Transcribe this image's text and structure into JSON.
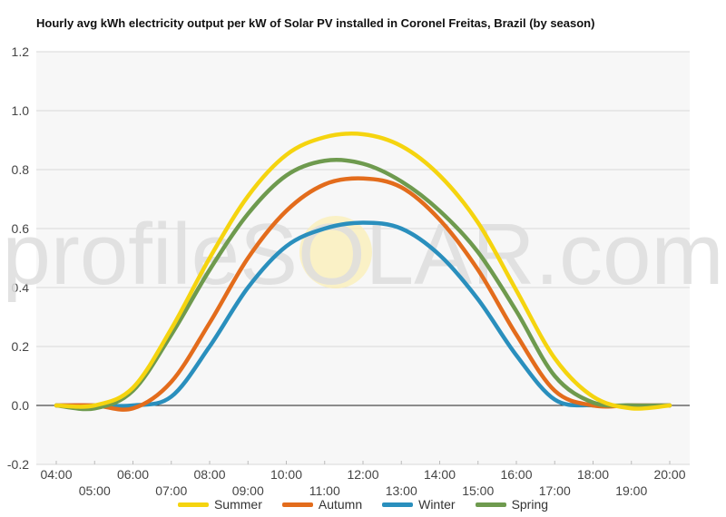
{
  "chart_data": {
    "type": "line",
    "title": "Hourly avg kWh electricity output per kW of Solar PV installed in Coronel Freitas, Brazil (by season)",
    "watermark": "profileSOLAR.com",
    "ylim": [
      -0.2,
      1.2
    ],
    "y_ticks": [
      "1.2",
      "1.0",
      "0.8",
      "0.6",
      "0.4",
      "0.2",
      "0.0",
      "-0.2"
    ],
    "y_tick_values": [
      1.2,
      1.0,
      0.8,
      0.6,
      0.4,
      0.2,
      0.0,
      -0.2
    ],
    "x_ticks_row1": [
      "04:00",
      "06:00",
      "08:00",
      "10:00",
      "12:00",
      "14:00",
      "16:00",
      "18:00",
      "20:00"
    ],
    "x_ticks_row2": [
      "05:00",
      "07:00",
      "09:00",
      "11:00",
      "13:00",
      "15:00",
      "17:00",
      "19:00"
    ],
    "x": [
      4,
      5,
      6,
      7,
      8,
      9,
      10,
      11,
      12,
      13,
      14,
      15,
      16,
      17,
      18,
      19,
      20
    ],
    "series": [
      {
        "name": "Summer",
        "color": "#f5d40f",
        "values": [
          0.0,
          0.0,
          0.06,
          0.26,
          0.5,
          0.71,
          0.85,
          0.91,
          0.92,
          0.88,
          0.78,
          0.62,
          0.39,
          0.16,
          0.03,
          -0.01,
          0.0
        ]
      },
      {
        "name": "Autumn",
        "color": "#e36c1c",
        "values": [
          0.0,
          0.0,
          -0.01,
          0.08,
          0.28,
          0.5,
          0.66,
          0.75,
          0.77,
          0.74,
          0.63,
          0.46,
          0.24,
          0.05,
          0.0,
          0.0,
          0.0
        ]
      },
      {
        "name": "Winter",
        "color": "#2a8fbd",
        "values": [
          0.0,
          0.0,
          0.0,
          0.03,
          0.2,
          0.4,
          0.54,
          0.6,
          0.62,
          0.6,
          0.51,
          0.36,
          0.17,
          0.02,
          0.0,
          0.0,
          0.0
        ]
      },
      {
        "name": "Spring",
        "color": "#6e9a4e",
        "values": [
          0.0,
          -0.01,
          0.05,
          0.24,
          0.46,
          0.65,
          0.78,
          0.83,
          0.82,
          0.76,
          0.66,
          0.52,
          0.32,
          0.1,
          0.01,
          0.0,
          0.0
        ]
      }
    ]
  }
}
